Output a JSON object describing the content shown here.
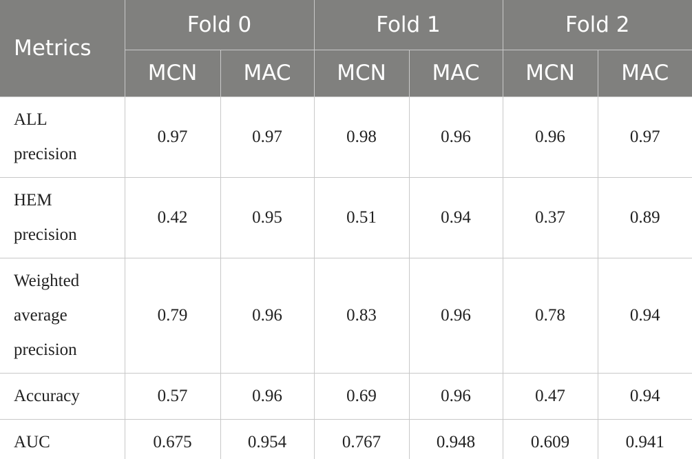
{
  "table": {
    "corner": "Metrics",
    "groups": [
      "Fold 0",
      "Fold 1",
      "Fold 2"
    ],
    "subheaders": [
      "MCN",
      "MAC",
      "MCN",
      "MAC",
      "MCN",
      "MAC"
    ],
    "rows": [
      {
        "label": "ALL precision",
        "cells": [
          "0.97",
          "0.97",
          "0.98",
          "0.96",
          "0.96",
          "0.97"
        ]
      },
      {
        "label": "HEM precision",
        "cells": [
          "0.42",
          "0.95",
          "0.51",
          "0.94",
          "0.37",
          "0.89"
        ]
      },
      {
        "label": "Weighted average precision",
        "cells": [
          "0.79",
          "0.96",
          "0.83",
          "0.96",
          "0.78",
          "0.94"
        ]
      },
      {
        "label": "Accuracy",
        "cells": [
          "0.57",
          "0.96",
          "0.69",
          "0.96",
          "0.47",
          "0.94"
        ]
      },
      {
        "label": "AUC",
        "cells": [
          "0.675",
          "0.954",
          "0.767",
          "0.948",
          "0.609",
          "0.941"
        ]
      }
    ]
  }
}
